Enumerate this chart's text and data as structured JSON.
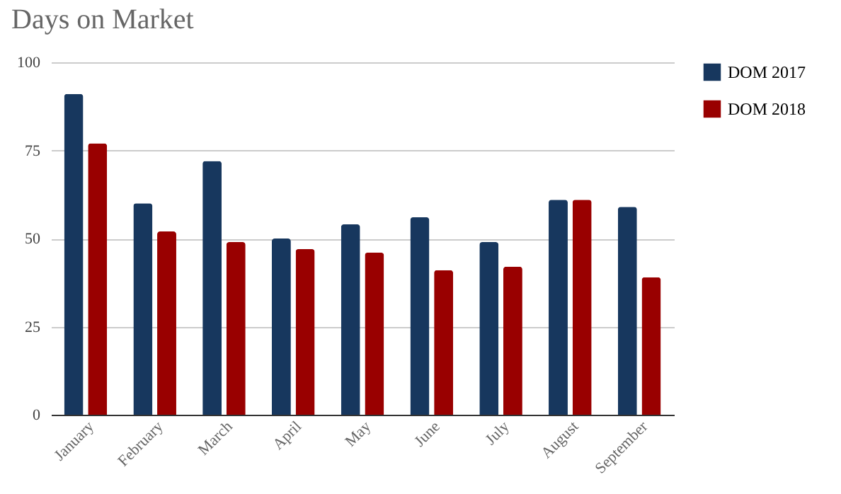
{
  "chart_data": {
    "type": "bar",
    "title": "Days on Market",
    "categories": [
      "January",
      "February",
      "March",
      "April",
      "May",
      "June",
      "July",
      "August",
      "September"
    ],
    "series": [
      {
        "name": "DOM 2017",
        "color": "#17375e",
        "values": [
          91,
          60,
          72,
          50,
          54,
          56,
          49,
          61,
          59
        ]
      },
      {
        "name": "DOM 2018",
        "color": "#990000",
        "values": [
          77,
          52,
          49,
          47,
          46,
          41,
          42,
          61,
          39
        ]
      }
    ],
    "ylim": [
      0,
      100
    ],
    "yticks": [
      0,
      25,
      50,
      75,
      100
    ],
    "grid": "y",
    "legend": "top right"
  }
}
